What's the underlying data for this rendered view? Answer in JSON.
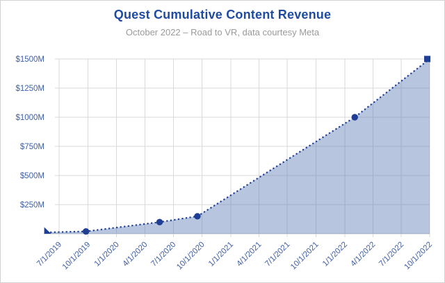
{
  "chart_data": {
    "type": "area",
    "title": "Quest Cumulative Content Revenue",
    "subtitle": "October 2022 – Road to VR, data courtesy Meta",
    "unit": "USD millions",
    "grid": true,
    "legend": false,
    "line_style": "dotted",
    "ylim": [
      0,
      1500
    ],
    "y_ticks": [
      {
        "value": 250,
        "label": "$250M"
      },
      {
        "value": 500,
        "label": "$500M"
      },
      {
        "value": 750,
        "label": "$750M"
      },
      {
        "value": 1000,
        "label": "$1000M"
      },
      {
        "value": 1250,
        "label": "$1250M"
      },
      {
        "value": 1500,
        "label": "$1500M"
      }
    ],
    "x_ticks": [
      "7/1/2019",
      "10/1/2019",
      "1/1/2020",
      "4/1/2020",
      "7/1/2020",
      "10/1/2020",
      "1/1/2021",
      "4/1/2021",
      "7/1/2021",
      "10/1/2021",
      "1/1/2022",
      "4/1/2022",
      "7/1/2022",
      "10/1/2022"
    ],
    "series": [
      {
        "points": [
          {
            "date": "5/21/2019",
            "value": 0,
            "marker": "triangle"
          },
          {
            "date": "9/25/2019",
            "value": 20,
            "marker": "circle"
          },
          {
            "date": "5/18/2020",
            "value": 100,
            "marker": "circle"
          },
          {
            "date": "9/16/2020",
            "value": 150,
            "marker": "circle"
          },
          {
            "date": "2/2/2022",
            "value": 1000,
            "marker": "circle"
          },
          {
            "date": "10/11/2022",
            "value": 1500,
            "marker": "square"
          }
        ]
      }
    ],
    "colors": {
      "title": "#1f4ca0",
      "subtitle": "#9a9a9a",
      "tick_label": "#3f5fa5",
      "line": "#1e3e93",
      "area_fill": "rgba(97,126,182,0.45)",
      "gridline": "#d9d9d9",
      "axis_line": "#c2c2c2",
      "background": "#ffffff",
      "border": "#d2d2d2"
    }
  }
}
